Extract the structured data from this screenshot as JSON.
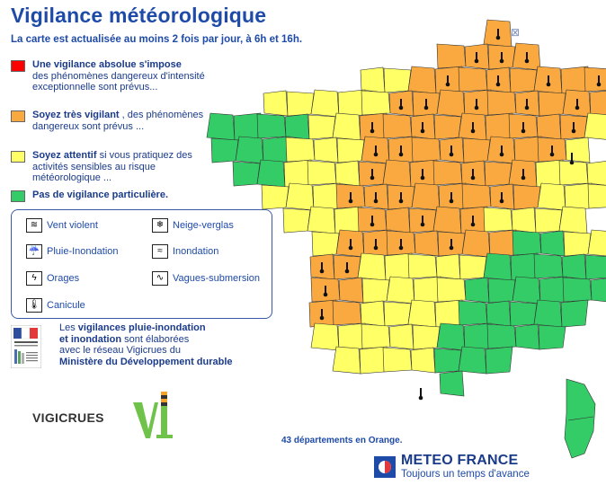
{
  "header": {
    "title": "Vigilance météorologique",
    "subtitle": "La carte est actualisée au moins 2 fois par jour, à 6h et 16h.",
    "close_symbol": "⊠"
  },
  "levels": [
    {
      "color": "#ff0000",
      "bold": "Une vigilance absolue s'impose",
      "text": "des phénomènes dangereux d'intensité exceptionnelle sont prévus..."
    },
    {
      "color": "#f9a940",
      "bold": "Soyez très vigilant",
      "text": ", des phénomènes dangereux sont prévus ..."
    },
    {
      "color": "#ffff66",
      "bold": "Soyez attentif",
      "text": "si vous pratiquez des activités sensibles au risque météorologique ..."
    },
    {
      "color": "#33cc66",
      "bold": "Pas de vigilance particulière.",
      "text": ""
    }
  ],
  "phenomena": [
    {
      "icon": "wind-icon",
      "glyph": "≋",
      "label": "Vent violent"
    },
    {
      "icon": "snowflake-icon",
      "glyph": "❄",
      "label": "Neige-verglas"
    },
    {
      "icon": "rain-flood-icon",
      "glyph": "☔",
      "label": "Pluie-Inondation"
    },
    {
      "icon": "flood-icon",
      "glyph": "≈",
      "label": "Inondation"
    },
    {
      "icon": "thunderstorm-icon",
      "glyph": "ϟ",
      "label": "Orages"
    },
    {
      "icon": "waves-icon",
      "glyph": "∿",
      "label": "Vagues-submersion"
    },
    {
      "icon": "thermometer-icon",
      "glyph": "🌡",
      "label": "Canicule"
    }
  ],
  "ministry": {
    "line1_pre": "Les ",
    "line1_bold": "vigilances pluie-inondation",
    "line2_bold": "et inondation",
    "line2_rest": " sont élaborées",
    "line3": "avec le réseau Vigicrues du",
    "line4_bold": "Ministère du Développement durable"
  },
  "vigicrues": {
    "name": "VIGICRUES"
  },
  "summary": "43 départements en Orange.",
  "footer": {
    "brand": "METEO FRANCE",
    "tagline": "Toujours un temps d'avance"
  },
  "map": {
    "colors": {
      "orange": "#f9a940",
      "yellow": "#ffff66",
      "green": "#33cc66",
      "border": "#333333"
    },
    "legend_title": ""
  }
}
